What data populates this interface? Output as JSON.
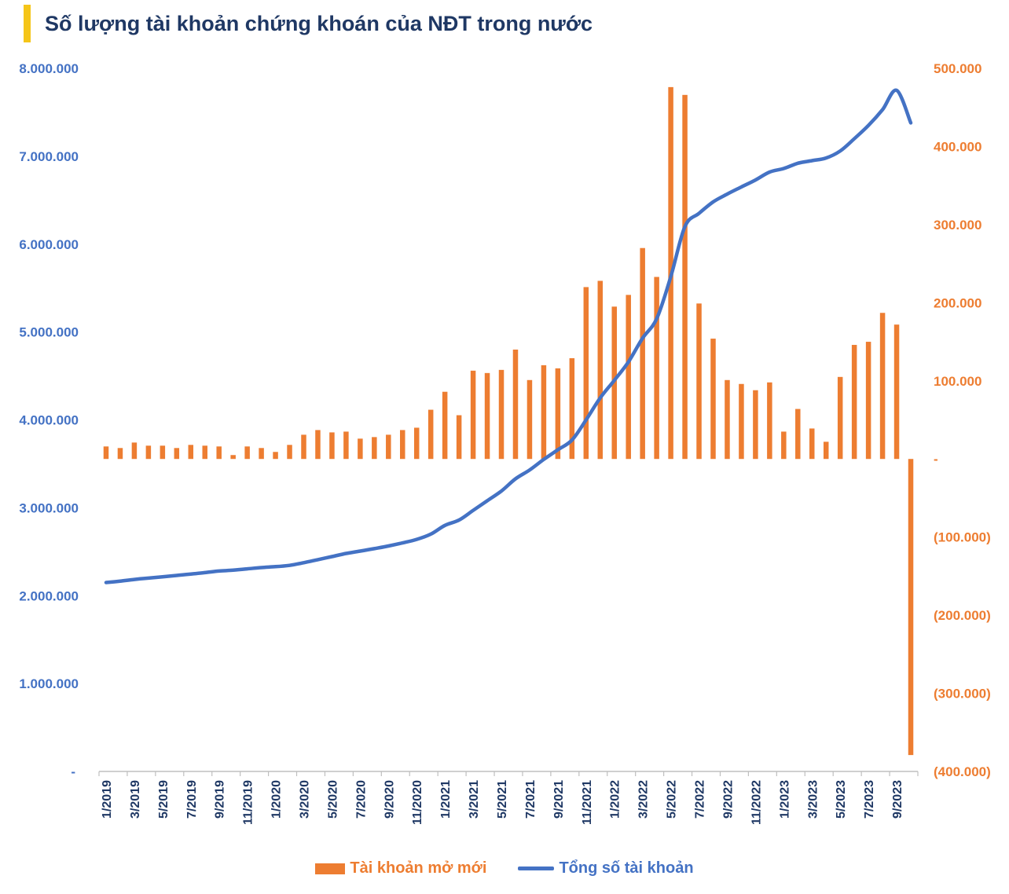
{
  "title": "Số lượng tài khoản chứng khoán của NĐT trong nước",
  "colors": {
    "bar": "#ED7D31",
    "line": "#4472C4",
    "title_accent": "#F5C518",
    "title_text": "#1F3864"
  },
  "chart_data": {
    "type": "bar+line",
    "title": "Số lượng tài khoản chứng khoán của NĐT trong nước",
    "categories": [
      "1/2019",
      "2/2019",
      "3/2019",
      "4/2019",
      "5/2019",
      "6/2019",
      "7/2019",
      "8/2019",
      "9/2019",
      "10/2019",
      "11/2019",
      "12/2019",
      "1/2020",
      "2/2020",
      "3/2020",
      "4/2020",
      "5/2020",
      "6/2020",
      "7/2020",
      "8/2020",
      "9/2020",
      "10/2020",
      "11/2020",
      "12/2020",
      "1/2021",
      "2/2021",
      "3/2021",
      "4/2021",
      "5/2021",
      "6/2021",
      "7/2021",
      "8/2021",
      "9/2021",
      "10/2021",
      "11/2021",
      "12/2021",
      "1/2022",
      "2/2022",
      "3/2022",
      "4/2022",
      "5/2022",
      "6/2022",
      "7/2022",
      "8/2022",
      "9/2022",
      "10/2022",
      "11/2022",
      "12/2022",
      "1/2023",
      "2/2023",
      "3/2023",
      "4/2023",
      "5/2023",
      "6/2023",
      "7/2023",
      "8/2023",
      "9/2023",
      "10/2023"
    ],
    "x_tick_labels": [
      "1/2019",
      "3/2019",
      "5/2019",
      "7/2019",
      "9/2019",
      "11/2019",
      "1/2020",
      "3/2020",
      "5/2020",
      "7/2020",
      "9/2020",
      "11/2020",
      "1/2021",
      "3/2021",
      "5/2021",
      "7/2021",
      "9/2021",
      "11/2021",
      "1/2022",
      "3/2022",
      "5/2022",
      "7/2022",
      "9/2022",
      "11/2022",
      "1/2023",
      "3/2023",
      "5/2023",
      "7/2023",
      "9/2023"
    ],
    "series": [
      {
        "name": "Tài khoản mở mới",
        "type": "bar",
        "axis": "right",
        "values": [
          16000,
          14000,
          21000,
          17000,
          17000,
          14000,
          18000,
          17000,
          16000,
          5000,
          16000,
          14000,
          9000,
          18000,
          31000,
          37000,
          34000,
          35000,
          26000,
          28000,
          31000,
          37000,
          40000,
          63000,
          86000,
          56000,
          113000,
          110000,
          114000,
          140000,
          101000,
          120000,
          116000,
          129000,
          220000,
          228000,
          195000,
          210000,
          270000,
          233000,
          476000,
          466000,
          199000,
          154000,
          101000,
          96000,
          88000,
          98000,
          35000,
          64000,
          39000,
          22000,
          105000,
          146000,
          150000,
          187000,
          172000,
          -379000
        ]
      },
      {
        "name": "Tổng số tài khoản",
        "type": "line",
        "axis": "left",
        "values": [
          2150000,
          2165000,
          2185000,
          2200000,
          2215000,
          2230000,
          2245000,
          2262000,
          2280000,
          2290000,
          2305000,
          2320000,
          2330000,
          2345000,
          2375000,
          2410000,
          2445000,
          2480000,
          2507000,
          2535000,
          2565000,
          2600000,
          2640000,
          2700000,
          2800000,
          2860000,
          2970000,
          3080000,
          3190000,
          3330000,
          3430000,
          3550000,
          3660000,
          3770000,
          4000000,
          4250000,
          4450000,
          4660000,
          4930000,
          5150000,
          5630000,
          6200000,
          6350000,
          6480000,
          6570000,
          6650000,
          6730000,
          6820000,
          6860000,
          6920000,
          6950000,
          6980000,
          7060000,
          7200000,
          7350000,
          7530000,
          7750000,
          7380000
        ]
      }
    ],
    "y_left": {
      "min": 0,
      "max": 8000000,
      "step": 1000000,
      "tick_labels": [
        "-",
        "1.000.000",
        "2.000.000",
        "3.000.000",
        "4.000.000",
        "5.000.000",
        "6.000.000",
        "7.000.000",
        "8.000.000"
      ]
    },
    "y_right": {
      "min": -400000,
      "max": 500000,
      "step": 100000,
      "tick_labels": [
        "(400.000)",
        "(300.000)",
        "(200.000)",
        "(100.000)",
        "-",
        "100.000",
        "200.000",
        "300.000",
        "400.000",
        "500.000"
      ]
    },
    "legend": [
      "Tài khoản mở mới",
      "Tổng số tài khoản"
    ],
    "legend_position": "bottom",
    "grid": false
  }
}
